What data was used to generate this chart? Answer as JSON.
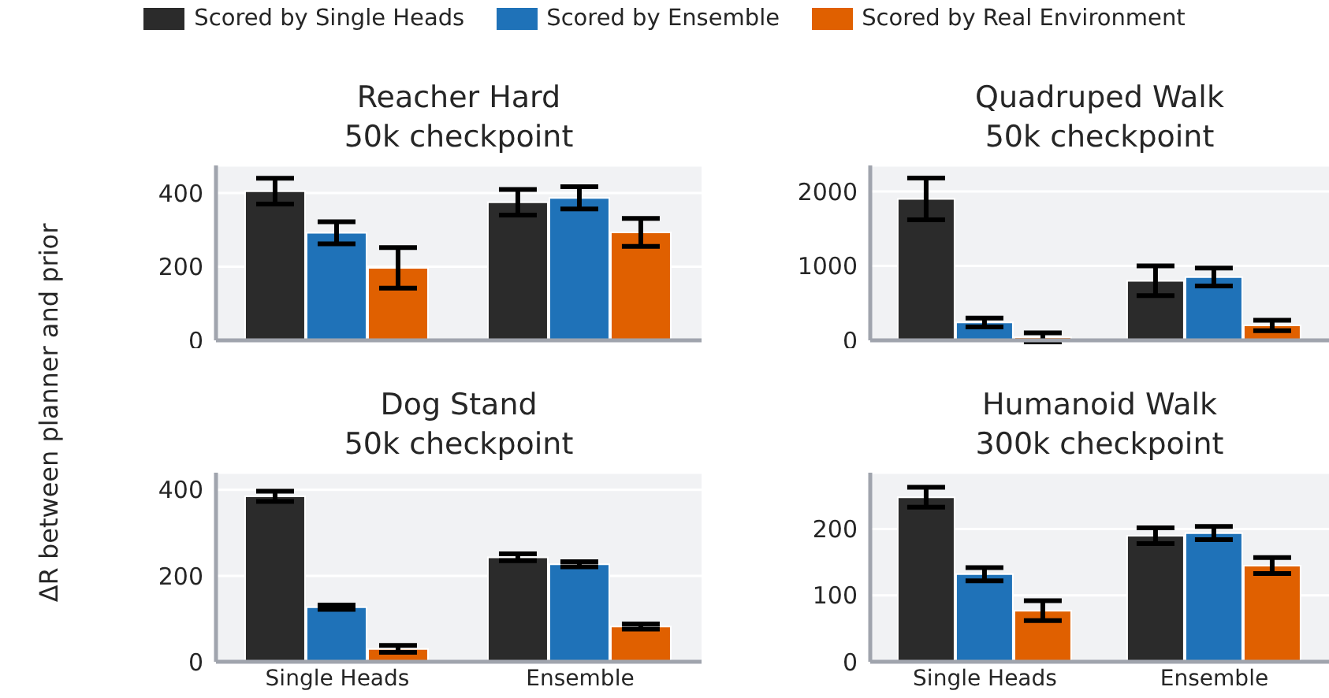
{
  "chart_data": [
    {
      "type": "bar",
      "title": "Reacher Hard\n50k checkpoint",
      "ylabel": "ΔR between planner and prior",
      "legend": "top",
      "grid": "y",
      "tick_labels": "y",
      "categories": [
        null,
        null
      ],
      "ylim": [
        0,
        475
      ],
      "yticks": [
        0,
        200,
        400
      ],
      "series": [
        {
          "name": "Scored by Single Heads",
          "color": "#2b2b2b",
          "values": [
            405,
            375
          ],
          "errors": [
            35,
            35
          ]
        },
        {
          "name": "Scored by Ensemble",
          "color": "#1f72b8",
          "values": [
            292,
            387
          ],
          "errors": [
            30,
            30
          ]
        },
        {
          "name": "Scored by Real Environment",
          "color": "#e06000",
          "values": [
            197,
            293
          ],
          "errors": [
            55,
            38
          ]
        }
      ]
    },
    {
      "type": "bar",
      "title": "Quadruped Walk\n50k checkpoint",
      "grid": "y",
      "tick_labels": "y",
      "categories": [
        null,
        null
      ],
      "ylim": [
        0,
        2350
      ],
      "yticks": [
        0,
        1000,
        2000
      ],
      "series": [
        {
          "color": "#2b2b2b",
          "values": [
            1900,
            800
          ],
          "errors": [
            280,
            200
          ]
        },
        {
          "color": "#1f72b8",
          "values": [
            240,
            850
          ],
          "errors": [
            60,
            120
          ]
        },
        {
          "color": "#e06000",
          "values": [
            40,
            200
          ],
          "errors": [
            60,
            70
          ]
        }
      ]
    },
    {
      "type": "bar",
      "title": "Dog Stand\n50k checkpoint",
      "grid": "y",
      "categories": [
        "Single Heads",
        "Ensemble"
      ],
      "ylim": [
        0,
        440
      ],
      "yticks": [
        0,
        200,
        400
      ],
      "series": [
        {
          "color": "#2b2b2b",
          "values": [
            385,
            243
          ],
          "errors": [
            12,
            8
          ]
        },
        {
          "color": "#1f72b8",
          "values": [
            127,
            227
          ],
          "errors": [
            5,
            6
          ]
        },
        {
          "color": "#e06000",
          "values": [
            30,
            82
          ],
          "errors": [
            8,
            6
          ]
        }
      ]
    },
    {
      "type": "bar",
      "title": "Humanoid Walk\n300k checkpoint",
      "grid": "y",
      "categories": [
        "Single Heads",
        "Ensemble"
      ],
      "ylim": [
        0,
        285
      ],
      "yticks": [
        0,
        100,
        200
      ],
      "series": [
        {
          "color": "#2b2b2b",
          "values": [
            248,
            190
          ],
          "errors": [
            15,
            12
          ]
        },
        {
          "color": "#1f72b8",
          "values": [
            132,
            194
          ],
          "errors": [
            10,
            10
          ]
        },
        {
          "color": "#e06000",
          "values": [
            77,
            145
          ],
          "errors": [
            15,
            12
          ]
        }
      ]
    }
  ]
}
